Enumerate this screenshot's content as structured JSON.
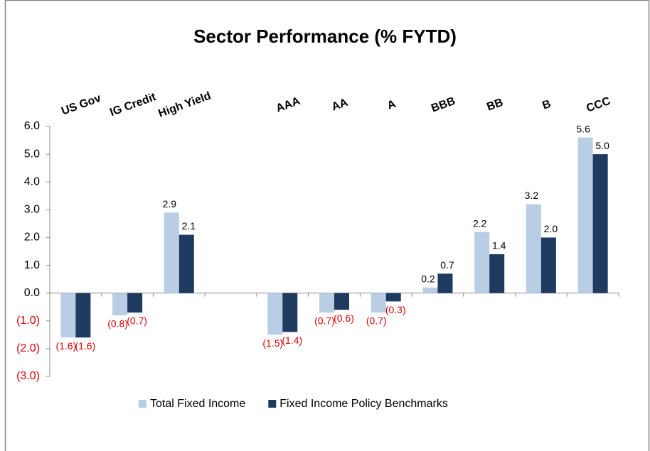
{
  "chart_data": {
    "type": "bar",
    "title": "Sector Performance (% FYTD)",
    "categories": [
      "US Gov",
      "IG Credit",
      "High Yield",
      null,
      "AAA",
      "AA",
      "A",
      "BBB",
      "BB",
      "B",
      "CCC"
    ],
    "series": [
      {
        "name": "Total Fixed Income",
        "color": "#b9cde5",
        "values": [
          -1.6,
          -0.8,
          2.9,
          null,
          -1.5,
          -0.7,
          -0.7,
          0.2,
          2.2,
          3.2,
          5.6
        ],
        "value_labels": [
          "(1.6)",
          "(0.8)",
          "2.9",
          null,
          "(1.5)",
          "(0.7)",
          "(0.7)",
          "0.2",
          "2.2",
          "3.2",
          "5.6"
        ]
      },
      {
        "name": "Fixed Income Policy Benchmarks",
        "color": "#1f3a5f",
        "values": [
          -1.6,
          -0.7,
          2.1,
          null,
          -1.4,
          -0.6,
          -0.3,
          0.7,
          1.4,
          2.0,
          5.0
        ],
        "value_labels": [
          "(1.6)",
          "(0.7)",
          "2.1",
          null,
          "(1.4)",
          "(0.6)",
          "(0.3)",
          "0.7",
          "1.4",
          "2.0",
          "5.0"
        ]
      }
    ],
    "ylim": [
      -3,
      6
    ],
    "yticks": [
      {
        "value": 6,
        "label": "6.0"
      },
      {
        "value": 5,
        "label": "5.0"
      },
      {
        "value": 4,
        "label": "4.0"
      },
      {
        "value": 3,
        "label": "3.0"
      },
      {
        "value": 2,
        "label": "2.0"
      },
      {
        "value": 1,
        "label": "1.0"
      },
      {
        "value": 0,
        "label": "0.0"
      },
      {
        "value": -1,
        "label": "(1.0)"
      },
      {
        "value": -2,
        "label": "(2.0)"
      },
      {
        "value": -3,
        "label": "(3.0)"
      }
    ],
    "grid": false,
    "legend": "bottom"
  }
}
